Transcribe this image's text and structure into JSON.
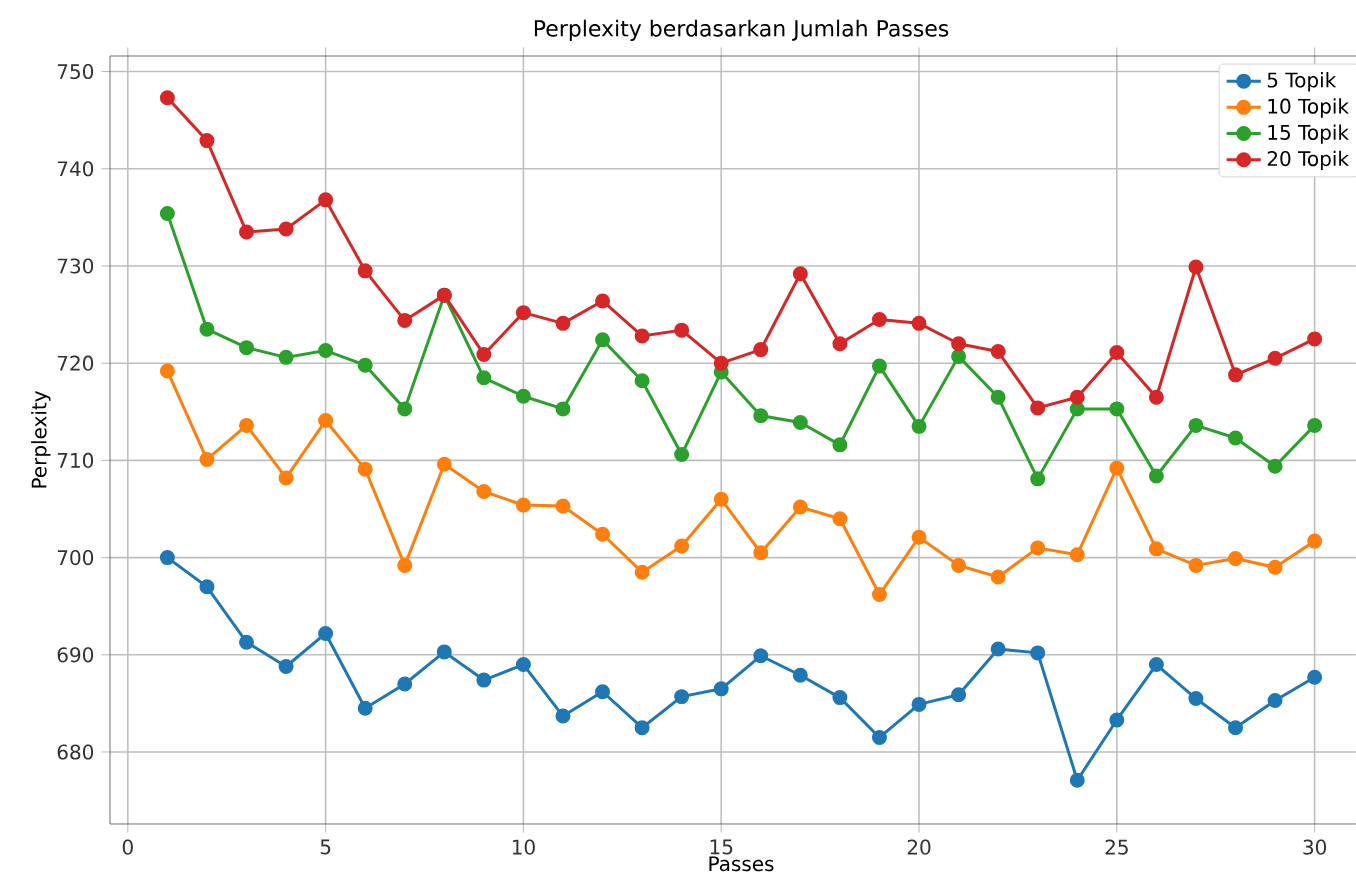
{
  "chart_data": {
    "type": "line",
    "title": "Perplexity berdasarkan Jumlah Passes",
    "xlabel": "Passes",
    "ylabel": "Perplexity",
    "x": [
      1,
      2,
      3,
      4,
      5,
      6,
      7,
      8,
      9,
      10,
      11,
      12,
      13,
      14,
      15,
      16,
      17,
      18,
      19,
      20,
      21,
      22,
      23,
      24,
      25,
      26,
      27,
      28,
      29,
      30
    ],
    "series": [
      {
        "name": "5 Topik",
        "color": "#1f77b4",
        "values": [
          700,
          697,
          691.3,
          688.8,
          692.2,
          684.5,
          687,
          690.3,
          687.4,
          689,
          683.7,
          686.2,
          682.5,
          685.7,
          686.5,
          689.9,
          687.9,
          685.6,
          681.5,
          684.9,
          685.9,
          690.6,
          690.2,
          677.1,
          683.3,
          689,
          685.5,
          682.5,
          685.3,
          687.7
        ]
      },
      {
        "name": "10 Topik",
        "color": "#ff7f0e",
        "values": [
          719.2,
          710.1,
          713.6,
          708.2,
          714.1,
          709.1,
          699.2,
          709.6,
          706.8,
          705.4,
          705.3,
          702.4,
          698.5,
          701.2,
          706,
          700.5,
          705.2,
          704,
          696.2,
          702.1,
          699.2,
          698,
          701,
          700.3,
          709.2,
          700.9,
          699.2,
          699.9,
          699,
          701.7
        ]
      },
      {
        "name": "15 Topik",
        "color": "#2ca02c",
        "values": [
          735.4,
          723.5,
          721.6,
          720.6,
          721.3,
          719.8,
          715.3,
          727,
          718.5,
          716.6,
          715.3,
          722.4,
          718.2,
          710.6,
          719.1,
          714.6,
          713.9,
          711.6,
          719.7,
          713.5,
          720.7,
          716.5,
          708.1,
          715.3,
          715.3,
          708.4,
          713.6,
          712.3,
          709.4,
          713.6
        ]
      },
      {
        "name": "20 Topik",
        "color": "#d62728",
        "values": [
          747.3,
          742.9,
          733.5,
          733.8,
          736.8,
          729.5,
          724.4,
          727,
          720.9,
          725.2,
          724.1,
          726.4,
          722.8,
          723.4,
          720,
          721.4,
          729.2,
          722,
          724.5,
          724.1,
          722,
          721.2,
          715.4,
          716.5,
          721.1,
          716.5,
          729.9,
          718.8,
          720.5,
          722.5
        ]
      }
    ],
    "xlim": [
      -0.45,
      31.45
    ],
    "ylim": [
      672.6,
      751.6
    ],
    "xticks": [
      0,
      5,
      10,
      15,
      20,
      25,
      30
    ],
    "yticks": [
      680,
      690,
      700,
      710,
      720,
      730,
      740,
      750
    ],
    "grid": true,
    "legend": "top right",
    "marker": "circle",
    "line_style": "solid"
  }
}
